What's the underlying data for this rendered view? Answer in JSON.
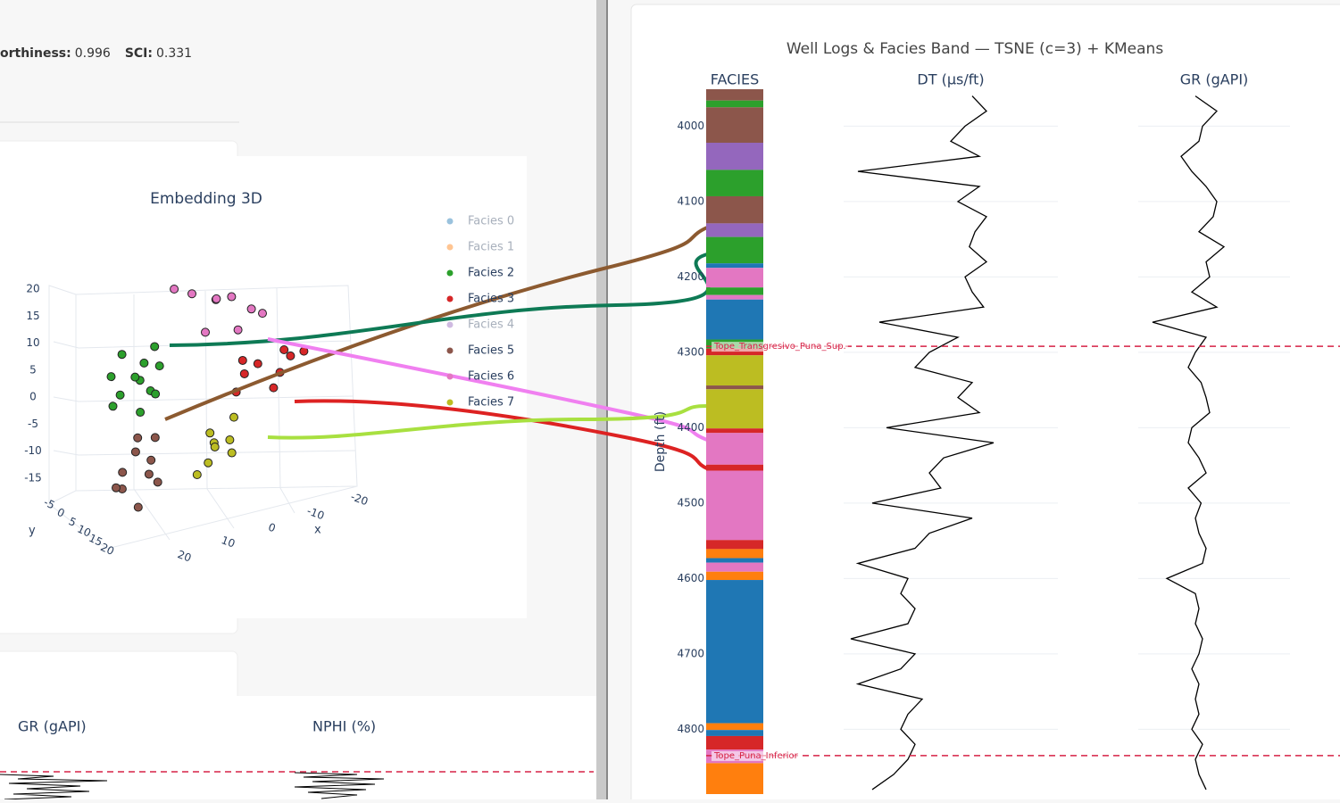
{
  "metrics": [
    {
      "label": "orthiness:",
      "value": 0.996
    },
    {
      "label": "SCI:",
      "value": 0.331
    }
  ],
  "embedding": {
    "title": "Embedding 3D",
    "z_ticks": [
      20,
      15,
      10,
      5,
      0,
      -5,
      -10,
      -15
    ],
    "x_ticks": [
      -20,
      -10,
      0,
      10,
      20
    ],
    "y_ticks": [
      -5,
      0,
      5,
      10,
      15,
      20
    ],
    "x_label": "x",
    "y_label": "y",
    "facies": [
      {
        "name": "Facies 0",
        "color": "#1f77b4",
        "visible": false,
        "points": {
          "x": [],
          "y": [],
          "z": []
        }
      },
      {
        "name": "Facies 1",
        "color": "#ff7f0e",
        "visible": false,
        "points": {
          "x": [],
          "y": [],
          "z": []
        }
      },
      {
        "name": "Facies 2",
        "color": "#2ca02c",
        "visible": true,
        "points": {
          "x": [
            18,
            14,
            20,
            12,
            16,
            10,
            19,
            13,
            15,
            11,
            17,
            21
          ],
          "y": [
            -2,
            0,
            1,
            -1,
            2,
            -3,
            -4,
            3,
            -2,
            1,
            4,
            -1
          ],
          "z": [
            12,
            10,
            6,
            4,
            8,
            11,
            2,
            5,
            7,
            9,
            3,
            9
          ]
        }
      },
      {
        "name": "Facies 3",
        "color": "#d62728",
        "visible": true,
        "points": {
          "x": [
            -12,
            -16,
            -20,
            -8,
            -14,
            -18,
            -6,
            -10,
            -22
          ],
          "y": [
            0,
            2,
            -1,
            1,
            3,
            0,
            2,
            -2,
            1
          ],
          "z": [
            3,
            1,
            2,
            5,
            -1,
            4,
            0,
            1,
            3
          ]
        }
      },
      {
        "name": "Facies 4",
        "color": "#9467bd",
        "visible": false,
        "points": {
          "x": [],
          "y": [],
          "z": []
        }
      },
      {
        "name": "Facies 5",
        "color": "#8c564b",
        "visible": true,
        "points": {
          "x": [
            17,
            15,
            19,
            14,
            18,
            16,
            20,
            13,
            22,
            12
          ],
          "y": [
            2,
            4,
            0,
            3,
            5,
            1,
            2,
            4,
            3,
            1
          ],
          "z": [
            -5,
            -9,
            -12,
            -7,
            -14,
            -3,
            -8,
            -11,
            -10,
            -4
          ]
        }
      },
      {
        "name": "Facies 6",
        "color": "#e377c2",
        "visible": true,
        "points": {
          "x": [
            -6,
            2,
            -10,
            -4,
            0,
            -12,
            5,
            -8,
            -2
          ],
          "y": [
            0,
            -2,
            1,
            -3,
            0,
            2,
            -4,
            -1,
            1
          ],
          "z": [
            17,
            19,
            14,
            16,
            12,
            13,
            20,
            10,
            18
          ]
        }
      },
      {
        "name": "Facies 7",
        "color": "#bcbd22",
        "visible": true,
        "points": {
          "x": [
            0,
            -4,
            2,
            -6,
            4,
            -2,
            1,
            -5
          ],
          "y": [
            2,
            3,
            5,
            1,
            4,
            0,
            6,
            2
          ],
          "z": [
            -6,
            -8,
            -10,
            -5,
            -12,
            -9,
            -7,
            -11
          ]
        }
      }
    ]
  },
  "well_logs": {
    "title": "Well Logs & Facies Band — TSNE (c=3) + KMeans",
    "tracks": [
      "FACIES",
      "DT (µs/ft)",
      "GR (gAPI)"
    ],
    "depth_label": "Depth (ft)",
    "ylim": [
      3951,
      4886
    ],
    "depth_ticks": [
      4000,
      4100,
      4200,
      4300,
      4400,
      4500,
      4600,
      4700,
      4800
    ],
    "facies_band": [
      [
        3951,
        3966,
        5
      ],
      [
        3966,
        3975,
        2
      ],
      [
        3975,
        4022,
        5
      ],
      [
        4022,
        4058,
        4
      ],
      [
        4058,
        4093,
        2
      ],
      [
        4093,
        4129,
        5
      ],
      [
        4129,
        4147,
        4
      ],
      [
        4147,
        4182,
        2
      ],
      [
        4182,
        4188,
        0
      ],
      [
        4188,
        4214,
        6
      ],
      [
        4214,
        4224,
        2
      ],
      [
        4224,
        4230,
        6
      ],
      [
        4230,
        4283,
        0
      ],
      [
        4283,
        4295,
        2
      ],
      [
        4295,
        4304,
        3
      ],
      [
        4304,
        4344,
        7
      ],
      [
        4344,
        4349,
        5
      ],
      [
        4349,
        4401,
        7
      ],
      [
        4401,
        4407,
        3
      ],
      [
        4407,
        4449,
        6
      ],
      [
        4449,
        4457,
        3
      ],
      [
        4457,
        4549,
        6
      ],
      [
        4549,
        4561,
        3
      ],
      [
        4561,
        4573,
        1
      ],
      [
        4573,
        4579,
        0
      ],
      [
        4579,
        4591,
        6
      ],
      [
        4591,
        4602,
        1
      ],
      [
        4602,
        4792,
        0
      ],
      [
        4792,
        4801,
        1
      ],
      [
        4801,
        4809,
        0
      ],
      [
        4809,
        4827,
        3
      ],
      [
        4827,
        4845,
        6
      ],
      [
        4845,
        4886,
        1
      ]
    ],
    "depth_samples": [
      3960,
      3980,
      4000,
      4020,
      4040,
      4060,
      4080,
      4100,
      4120,
      4140,
      4160,
      4180,
      4200,
      4220,
      4240,
      4260,
      4280,
      4300,
      4320,
      4340,
      4360,
      4380,
      4400,
      4420,
      4440,
      4460,
      4480,
      4500,
      4520,
      4540,
      4560,
      4580,
      4600,
      4620,
      4640,
      4660,
      4680,
      4700,
      4720,
      4740,
      4760,
      4780,
      4800,
      4820,
      4840,
      4860,
      4880
    ],
    "dt": {
      "xlim": [
        50,
        200
      ],
      "values": [
        140,
        150,
        135,
        125,
        145,
        60,
        145,
        130,
        150,
        142,
        138,
        150,
        135,
        140,
        148,
        75,
        130,
        110,
        100,
        140,
        130,
        145,
        80,
        155,
        120,
        110,
        118,
        70,
        140,
        110,
        100,
        60,
        95,
        90,
        100,
        95,
        55,
        100,
        90,
        60,
        105,
        95,
        90,
        100,
        95,
        85,
        70
      ]
    },
    "gr": {
      "xlim": [
        0,
        200
      ],
      "values": [
        80,
        110,
        90,
        85,
        60,
        75,
        95,
        110,
        105,
        85,
        120,
        95,
        100,
        75,
        110,
        20,
        95,
        80,
        70,
        88,
        95,
        100,
        75,
        70,
        85,
        95,
        70,
        88,
        80,
        85,
        95,
        90,
        40,
        80,
        85,
        80,
        90,
        85,
        75,
        85,
        80,
        85,
        75,
        90,
        80,
        85,
        95
      ]
    },
    "tops": [
      {
        "name": "Tope_Transgresivo_Puna_Sup.",
        "depth": 4292
      },
      {
        "name": "Tope_Puna_Inferior",
        "depth": 4835
      }
    ]
  },
  "bottom_panel": {
    "tracks": [
      "GR (gAPI)",
      "NPHI (%)"
    ]
  }
}
